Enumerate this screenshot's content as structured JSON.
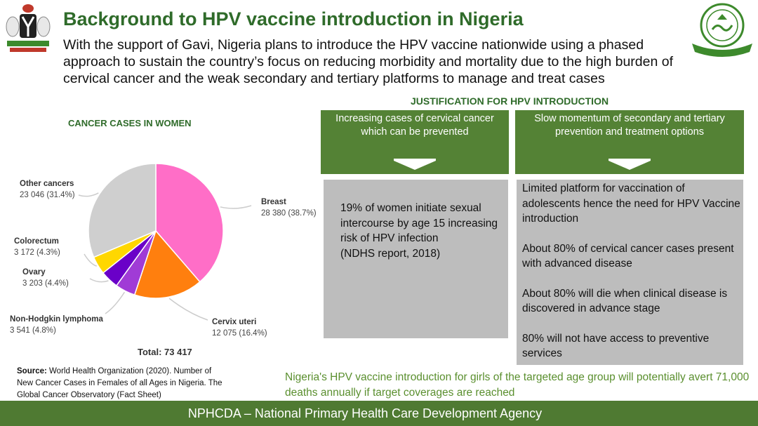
{
  "header": {
    "title": "Background to HPV vaccine introduction in Nigeria",
    "intro": "With the support of Gavi, Nigeria plans to introduce the HPV vaccine nationwide using a phased approach to sustain the country’s focus on reducing morbidity and mortality due to the high burden of cervical cancer and the weak secondary and tertiary platforms to manage and treat cases"
  },
  "justification": {
    "heading": "JUSTIFICATION FOR HPV INTRODUCTION",
    "box1_title": "Increasing cases of cervical cancer which can be prevented",
    "box2_title": "Slow momentum of secondary and tertiary prevention and treatment options",
    "box1_points": [
      "19% of women initiate sexual intercourse by age 15 increasing risk of HPV infection",
      "(NDHS report, 2018)"
    ],
    "box2_points": [
      "Limited platform for vaccination of adolescents hence the need for HPV Vaccine introduction",
      "About 80% of cervical cancer cases present with advanced disease",
      "About 80% will die when clinical disease is discovered in advance stage",
      "80% will not have access to preventive services"
    ]
  },
  "conclusion": "Nigeria's HPV vaccine introduction for girls  of the targeted  age group will potentially avert 71,000 deaths annually  if target coverages are reached",
  "source": {
    "label": "Source:",
    "text": " World Health Organization (2020). Number of New Cancer Cases in Females of all Ages in Nigeria. The Global Cancer Observatory (Fact Sheet)"
  },
  "footer": "NPHCDA – National Primary Health Care Development Agency",
  "colors": {
    "title_green": "#2f6b2a",
    "box_green": "#548235",
    "grey_box": "#bdbdbd",
    "footer_green": "#4f7a32"
  },
  "icons": {
    "left_logo": "nigeria-coat-of-arms-icon",
    "right_logo": "nphcda-seal-icon"
  },
  "chart_data": {
    "type": "pie",
    "title": "CANCER CASES IN WOMEN",
    "total_label": "Total: 73 417",
    "slices": [
      {
        "name": "Breast",
        "value": 28380,
        "label": "28 380 (38.7%)",
        "color": "#ff6ec7"
      },
      {
        "name": "Cervix uteri",
        "value": 12075,
        "label": "12 075 (16.4%)",
        "color": "#ff7f0e"
      },
      {
        "name": "Non-Hodgkin lymphoma",
        "value": 3541,
        "label": "3 541 (4.8%)",
        "color": "#a03bd6"
      },
      {
        "name": "Ovary",
        "value": 3203,
        "label": "3 203 (4.4%)",
        "color": "#6a00c8"
      },
      {
        "name": "Colorectum",
        "value": 3172,
        "label": "3 172 (4.3%)",
        "color": "#ffd700"
      },
      {
        "name": "Other cancers",
        "value": 23046,
        "label": "23 046 (31.4%)",
        "color": "#cfcfcf"
      }
    ]
  }
}
